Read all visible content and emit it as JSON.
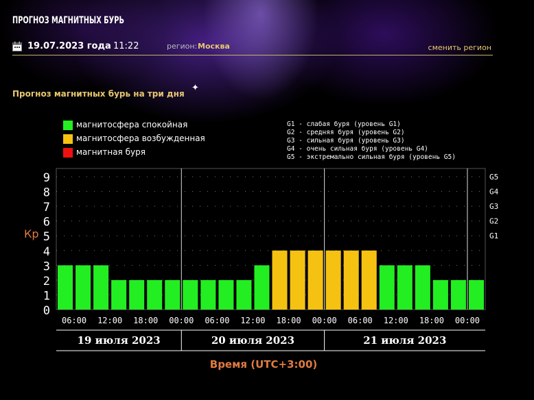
{
  "header": {
    "site_title": "ПРОГНОЗ МАГНИТНЫХ БУРЬ",
    "date": "19.07.2023 года",
    "time": "11:22",
    "region_label": "регион:",
    "region_value": "Москва",
    "change_region": "сменить регион"
  },
  "section_title": "Прогноз магнитных бурь на три дня",
  "legend": [
    {
      "label": "магнитосфера спокойная",
      "color": "#22ee22"
    },
    {
      "label": "магнитосфера возбужденная",
      "color": "#f5c211"
    },
    {
      "label": "магнитная буря",
      "color": "#ee1111"
    }
  ],
  "g_levels": [
    "G1 - слабая буря (уровень G1)",
    "G2 - средняя буря (уровень G2)",
    "G3 - сильная буря (уровень G3)",
    "G4 - очень сильная буря (уровень G4)",
    "G5 - экстремально сильная буря (уровень G5)"
  ],
  "chart_data": {
    "type": "bar",
    "ylabel": "Кр",
    "xlabel": "Время (UTC+3:00)",
    "ylim": [
      0,
      9
    ],
    "yticks": [
      "0",
      "1",
      "2",
      "3",
      "4",
      "5",
      "6",
      "7",
      "8",
      "9"
    ],
    "right_ticks": [
      {
        "label": "G1",
        "kp": 5
      },
      {
        "label": "G2",
        "kp": 6
      },
      {
        "label": "G3",
        "kp": 7
      },
      {
        "label": "G4",
        "kp": 8
      },
      {
        "label": "G5",
        "kp": 9
      }
    ],
    "xtick_labels": [
      "06:00",
      "12:00",
      "18:00",
      "00:00",
      "06:00",
      "12:00",
      "18:00",
      "00:00",
      "06:00",
      "12:00",
      "18:00",
      "00:00"
    ],
    "day_labels": [
      "19 июля 2023",
      "20 июля 2023",
      "21 июля 2023"
    ],
    "values": [
      3,
      3,
      3,
      2,
      2,
      2,
      2,
      2,
      2,
      2,
      2,
      3,
      4,
      4,
      4,
      4,
      4,
      4,
      3,
      3,
      3,
      2,
      2,
      2
    ],
    "colors": {
      "calm": "#22ee22",
      "excited": "#f5c211",
      "storm": "#ee1111"
    },
    "grid": true
  }
}
